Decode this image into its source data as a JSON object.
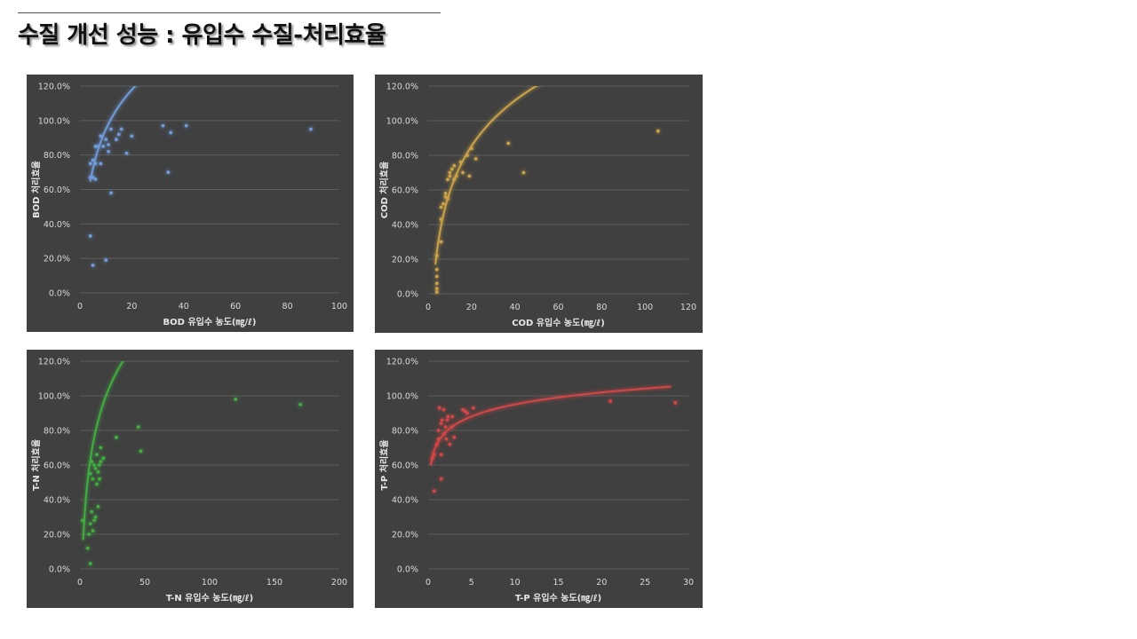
{
  "slide": {
    "title": "수질 개선 성능 : 유입수 수질-처리효율"
  },
  "chart_data": [
    {
      "type": "scatter",
      "xlabel": "BOD 유입수 농도(㎎/ℓ)",
      "ylabel": "BOD 처리효율",
      "xlim": [
        0,
        100
      ],
      "xticks": [
        0,
        20,
        40,
        60,
        80,
        100
      ],
      "ylim": [
        0,
        120
      ],
      "yticks": [
        "0.0%",
        "20.0%",
        "40.0%",
        "60.0%",
        "80.0%",
        "100.0%",
        "120.0%"
      ],
      "grid": true,
      "color": "#6f9bd8",
      "points": [
        [
          4,
          33
        ],
        [
          5,
          16
        ],
        [
          10,
          19
        ],
        [
          4,
          67
        ],
        [
          5,
          67
        ],
        [
          6,
          66
        ],
        [
          4,
          75
        ],
        [
          5,
          77
        ],
        [
          6,
          75
        ],
        [
          8,
          75
        ],
        [
          6,
          85
        ],
        [
          7,
          85
        ],
        [
          8,
          91
        ],
        [
          9,
          85
        ],
        [
          10,
          89
        ],
        [
          11,
          82
        ],
        [
          11,
          86
        ],
        [
          12,
          95
        ],
        [
          12,
          58
        ],
        [
          14,
          89
        ],
        [
          15,
          92
        ],
        [
          16,
          95
        ],
        [
          18,
          81
        ],
        [
          20,
          91
        ],
        [
          32,
          97
        ],
        [
          34,
          70
        ],
        [
          35,
          93
        ],
        [
          41,
          97
        ],
        [
          89,
          95
        ]
      ],
      "trendline": {
        "type": "logarithmic",
        "a": 19.0,
        "b": 33.0,
        "x_range": [
          4,
          88
        ]
      }
    },
    {
      "type": "scatter",
      "xlabel": "COD 유입수 농도(㎎/ℓ)",
      "ylabel": "COD 처리효율",
      "xlim": [
        0,
        120
      ],
      "xticks": [
        0,
        20,
        40,
        60,
        80,
        100,
        120
      ],
      "ylim": [
        0,
        120
      ],
      "yticks": [
        "0.0%",
        "20.0%",
        "40.0%",
        "60.0%",
        "80.0%",
        "100.0%",
        "120.0%"
      ],
      "grid": true,
      "color": "#c9a24a",
      "points": [
        [
          4,
          1
        ],
        [
          4,
          3
        ],
        [
          4,
          6
        ],
        [
          4,
          10
        ],
        [
          4,
          14
        ],
        [
          4,
          22
        ],
        [
          6,
          30
        ],
        [
          6,
          43
        ],
        [
          6,
          50
        ],
        [
          7,
          52
        ],
        [
          8,
          56
        ],
        [
          8,
          58
        ],
        [
          9,
          55
        ],
        [
          9,
          66
        ],
        [
          10,
          70
        ],
        [
          10,
          68
        ],
        [
          11,
          72
        ],
        [
          12,
          66
        ],
        [
          12,
          74
        ],
        [
          13,
          68
        ],
        [
          15,
          76
        ],
        [
          16,
          70
        ],
        [
          18,
          80
        ],
        [
          19,
          68
        ],
        [
          20,
          84
        ],
        [
          22,
          78
        ],
        [
          37,
          87
        ],
        [
          44,
          70
        ],
        [
          106,
          94
        ]
      ],
      "trendline": {
        "type": "logarithmic",
        "a": -28.5,
        "b": 38.0,
        "x_range": [
          3.3,
          97
        ]
      }
    },
    {
      "type": "scatter",
      "xlabel": "T-N 유입수 농도(㎎/ℓ)",
      "ylabel": "T-N 처리효율",
      "xlim": [
        0,
        200
      ],
      "xticks": [
        0,
        50,
        100,
        150,
        200
      ],
      "ylim": [
        0,
        120
      ],
      "yticks": [
        "0.0%",
        "20.0%",
        "40.0%",
        "60.0%",
        "80.0%",
        "100.0%",
        "120.0%"
      ],
      "grid": true,
      "color": "#3fae3f",
      "points": [
        [
          2,
          28
        ],
        [
          6,
          12
        ],
        [
          7,
          20
        ],
        [
          8,
          3
        ],
        [
          8,
          26
        ],
        [
          8,
          55
        ],
        [
          9,
          33
        ],
        [
          9,
          62
        ],
        [
          10,
          52
        ],
        [
          10,
          22
        ],
        [
          11,
          60
        ],
        [
          11,
          28
        ],
        [
          12,
          30
        ],
        [
          12,
          58
        ],
        [
          13,
          49
        ],
        [
          13,
          66
        ],
        [
          14,
          56
        ],
        [
          14,
          36
        ],
        [
          15,
          52
        ],
        [
          15,
          60
        ],
        [
          16,
          70
        ],
        [
          16,
          62
        ],
        [
          18,
          64
        ],
        [
          28,
          76
        ],
        [
          45,
          82
        ],
        [
          47,
          68
        ],
        [
          120,
          98
        ],
        [
          170,
          95
        ]
      ],
      "trendline": {
        "type": "logarithmic",
        "a": -20.0,
        "b": 40.0,
        "x_range": [
          2.5,
          160
        ]
      }
    },
    {
      "type": "scatter",
      "xlabel": "T-P 유입수 농도(㎎/ℓ)",
      "ylabel": "T-P 처리효율",
      "xlim": [
        0,
        30
      ],
      "xticks": [
        0,
        5,
        10,
        15,
        20,
        25,
        30
      ],
      "ylim": [
        0,
        120
      ],
      "yticks": [
        "0.0%",
        "20.0%",
        "40.0%",
        "60.0%",
        "80.0%",
        "100.0%",
        "120.0%"
      ],
      "grid": true,
      "color": "#d64545",
      "points": [
        [
          0.5,
          64
        ],
        [
          0.7,
          66
        ],
        [
          0.7,
          45
        ],
        [
          1.0,
          72
        ],
        [
          1.2,
          75
        ],
        [
          1.2,
          80
        ],
        [
          1.3,
          93
        ],
        [
          1.5,
          84
        ],
        [
          1.5,
          66
        ],
        [
          1.5,
          52
        ],
        [
          1.6,
          86
        ],
        [
          1.8,
          92
        ],
        [
          1.8,
          78
        ],
        [
          2.0,
          82
        ],
        [
          2.1,
          75
        ],
        [
          2.2,
          86
        ],
        [
          2.3,
          88
        ],
        [
          2.5,
          72
        ],
        [
          2.7,
          82
        ],
        [
          2.8,
          88
        ],
        [
          3.0,
          76
        ],
        [
          4.0,
          92
        ],
        [
          4.3,
          91
        ],
        [
          4.5,
          90
        ],
        [
          5.2,
          93
        ],
        [
          21,
          97
        ],
        [
          28.5,
          96
        ]
      ],
      "trendline": {
        "type": "logarithmic",
        "a": 72.0,
        "b": 10.0,
        "x_range": [
          0.3,
          28
        ]
      }
    }
  ]
}
